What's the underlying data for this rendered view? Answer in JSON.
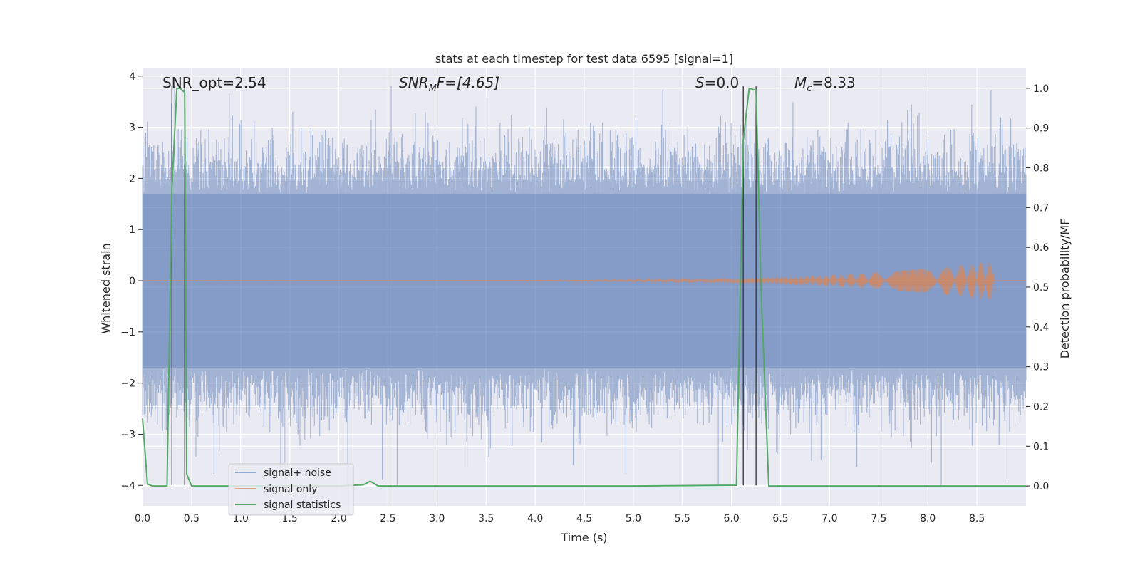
{
  "chart_data": {
    "type": "line",
    "title": "stats at each timestep for test data 6595 [signal=1]",
    "xlabel": "Time (s)",
    "ylabel": "Whitened strain",
    "ylabel_right": "Detection probability/MF",
    "xlim": [
      0.0,
      9.0
    ],
    "ylim": [
      -4.4,
      4.15
    ],
    "ylim_right": [
      -0.05,
      1.05
    ],
    "x_ticks": [
      "0.0",
      "0.5",
      "1.0",
      "1.5",
      "2.0",
      "2.5",
      "3.0",
      "3.5",
      "4.0",
      "4.5",
      "5.0",
      "5.5",
      "6.0",
      "6.5",
      "7.0",
      "7.5",
      "8.0",
      "8.5"
    ],
    "y_ticks": [
      "4",
      "3",
      "2",
      "1",
      "0",
      "−1",
      "−2",
      "−3",
      "−4"
    ],
    "y_ticks_right": [
      "1.0",
      "0.9",
      "0.8",
      "0.7",
      "0.6",
      "0.5",
      "0.4",
      "0.3",
      "0.2",
      "0.1",
      "0.0"
    ],
    "grid": true,
    "legend_position": "lower-left",
    "annotations": [
      {
        "text": "SNR_opt=2.54"
      },
      {
        "text_main": "SNR",
        "text_sub": "M",
        "text_end": "F=[4.65]"
      },
      {
        "text_main": "S",
        "text_end": "=0.0"
      },
      {
        "text_main": "M",
        "text_sub": "c",
        "text_end": "=8.33"
      }
    ],
    "series": [
      {
        "name": "signal+ noise",
        "color": "#4c72b0",
        "axis": "left",
        "kind": "noise",
        "x_range": [
          0.0,
          9.0
        ],
        "envelope": [
          -1.7,
          1.7
        ],
        "peaks": [
          -4.0,
          3.8
        ]
      },
      {
        "name": "signal only",
        "color": "#dd8452",
        "axis": "left",
        "kind": "chirp",
        "x_start": 0.0,
        "x_end": 8.68,
        "max_amplitude": 0.38
      },
      {
        "name": "signal statistics",
        "color": "#55a868",
        "axis": "right",
        "kind": "line",
        "x": [
          0.0,
          0.05,
          0.1,
          0.25,
          0.3,
          0.35,
          0.38,
          0.43,
          0.45,
          0.5,
          0.55,
          1.0,
          2.0,
          2.25,
          2.32,
          2.4,
          3.0,
          5.0,
          6.05,
          6.12,
          6.18,
          6.25,
          6.3,
          6.38,
          6.5,
          8.0,
          9.0
        ],
        "y": [
          0.17,
          0.005,
          0.0,
          0.0,
          0.75,
          1.0,
          1.0,
          0.99,
          0.03,
          0.0,
          0.0,
          0.0,
          0.0,
          0.003,
          0.012,
          0.0,
          0.0,
          0.0,
          0.002,
          0.87,
          1.0,
          0.995,
          0.5,
          0.0,
          0.0,
          0.0,
          0.0
        ]
      }
    ],
    "vlines": [
      0.3,
      0.43,
      6.12,
      6.25
    ],
    "vline_color": "#333333"
  }
}
